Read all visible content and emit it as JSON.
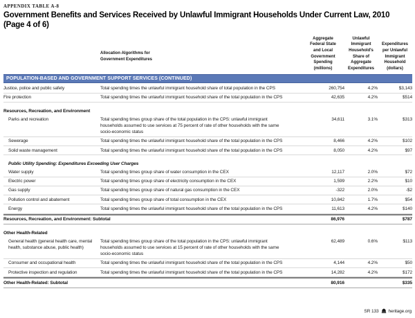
{
  "meta": {
    "table_label": "APPENDIX TABLE A-8",
    "title": "Government Benefits and Services Received by Unlawful Immigrant Households Under Current Law, 2010 (Page 4 of 6)"
  },
  "header": {
    "algorithm_col": "Allocation Algorithms for\nGovernment Expenditures",
    "col_spending": "Aggregate\nFederal State\nand Local\nGovernment\nSpending\n(millions)",
    "col_share": "Unlawful\nImmigrant\nHousehold's\nShare of\nAggregate\nExpenditures",
    "col_per_household": "Expenditures\nper Unlawful\nImmigrant\nHousehold\n(dollars)"
  },
  "section_band": "POPULATION-BASED AND GOVERNMENT SUPPORT SERVICES (CONTINUED)",
  "rows": [
    {
      "type": "item",
      "indent": 0,
      "label": "Justice, police and public safety",
      "desc": "Total spending times the unlawful immigrant household share of total population in the CPS",
      "spending": "260,754",
      "share": "4.2%",
      "per_hh": "$3,143"
    },
    {
      "type": "item",
      "indent": 0,
      "label": "Fire protection",
      "desc": "Total spending times the unlawful immigrant household share of the total population in the CPS",
      "spending": "42,635",
      "share": "4.2%",
      "per_hh": "$514"
    },
    {
      "type": "section",
      "label": "Resources, Recreation, and Environment"
    },
    {
      "type": "item",
      "indent": 1,
      "label": "Parks and recreation",
      "desc": "Total spending times group share of the total population in the CPS: unlawful immigrant households assumed to use services at 75 percent of rate of other households with the same socio-economic status",
      "spending": "34,611",
      "share": "3.1%",
      "per_hh": "$313"
    },
    {
      "type": "item",
      "indent": 1,
      "label": "Sewerage",
      "desc": "Total spending times the unlawful immigrant household share of the total population in the CPS",
      "spending": "8,466",
      "share": "4.2%",
      "per_hh": "$102"
    },
    {
      "type": "item",
      "indent": 1,
      "label": "Solid waste management",
      "desc": "Total spending times the unlawful immigrant household share of the total population in the CPS",
      "spending": "8,050",
      "share": "4.2%",
      "per_hh": "$97"
    },
    {
      "type": "isubhead",
      "label": "Public Utility Spending: Expenditures Exceeding User Charges"
    },
    {
      "type": "item",
      "indent": 1,
      "label": "Water supply",
      "desc": "Total spending times group share of water consumption in the CEX",
      "spending": "12,117",
      "share": "2.0%",
      "per_hh": "$72"
    },
    {
      "type": "item",
      "indent": 1,
      "label": "Electric power",
      "desc": "Total spending times group share of electricity consumption in the CEX",
      "spending": "1,599",
      "share": "2.2%",
      "per_hh": "$10"
    },
    {
      "type": "item",
      "indent": 1,
      "label": "Gas supply",
      "desc": "Total spending times group share of natural gas consumption in the CEX",
      "spending": "-322",
      "share": "2.0%",
      "per_hh": "-$2"
    },
    {
      "type": "item",
      "indent": 1,
      "label": "Pollution control and abatement",
      "desc": "Total spending times group share of total consumption in the CEX",
      "spending": "10,842",
      "share": "1.7%",
      "per_hh": "$54"
    },
    {
      "type": "item",
      "indent": 1,
      "label": "Energy",
      "desc": "Total spending times the unlawful immigrant household share of the total population in the CPS",
      "spending": "11,613",
      "share": "4.2%",
      "per_hh": "$140"
    },
    {
      "type": "subtotal",
      "label": "Resources, Recreation, and Environment: Subtotal",
      "spending": "86,976",
      "share": "",
      "per_hh": "$787"
    },
    {
      "type": "section",
      "label": "Other Health-Related"
    },
    {
      "type": "item",
      "indent": 1,
      "label": "General health (general health care, mental health, substance abuse, public health)",
      "desc": "Total spending times group share of the total population in the CPS: unlawful immigrant households assumed to use services at 15 percent of rate of other households with the same socio-economic status",
      "spending": "62,489",
      "share": "0.6%",
      "per_hh": "$113"
    },
    {
      "type": "item",
      "indent": 1,
      "label": "Consumer and occupational health",
      "desc": "Total spending times the unlawful immigrant household share of the total population in the CPS",
      "spending": "4,144",
      "share": "4.2%",
      "per_hh": "$50"
    },
    {
      "type": "item",
      "indent": 1,
      "label": "Protective inspection and regulation",
      "desc": "Total spending times the unlawful immigrant household share of the total population in the CPS",
      "spending": "14,282",
      "share": "4.2%",
      "per_hh": "$172"
    },
    {
      "type": "subtotal",
      "label": "Other Health-Related: Subtotal",
      "spending": "80,916",
      "share": "",
      "per_hh": "$335"
    }
  ],
  "footer": {
    "doc_id": "SR 133",
    "site": "heritage.org",
    "logo_icon": "heritage-bell-icon"
  },
  "colors": {
    "band_blue": "#5b79b7",
    "band_edge": "#47639e",
    "row_line": "#d9d9d9",
    "subtotal_line": "#7f7f7f"
  }
}
